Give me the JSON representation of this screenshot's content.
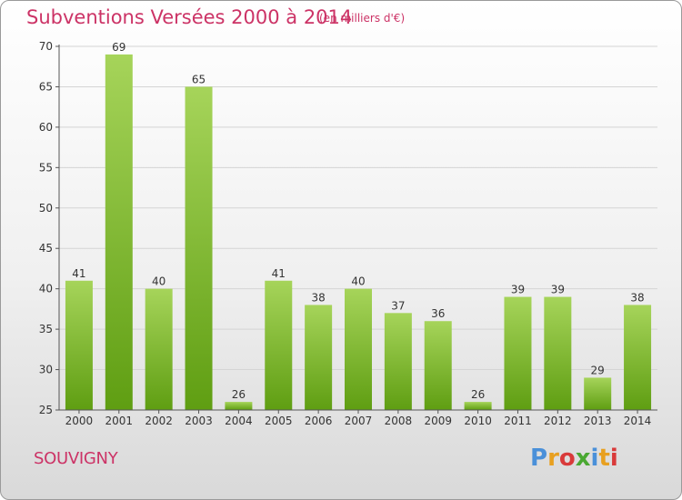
{
  "header": {
    "title": "Subventions Versées 2000 à 2014",
    "unit": "(en milliers d'€)"
  },
  "footer": {
    "commune": "SOUVIGNY",
    "logo_text": "Proxiti",
    "logo_colors": [
      "#4a90d9",
      "#e8a020",
      "#d93a3a",
      "#4aa832",
      "#4a90d9",
      "#e8a020",
      "#d93a3a"
    ]
  },
  "colors": {
    "bar_light": "#a6d45a",
    "bar_dark": "#5f9e12",
    "title": "#cc3366"
  },
  "chart_data": {
    "type": "bar",
    "title": "Subventions Versées 2000 à 2014",
    "xlabel": "",
    "ylabel": "",
    "categories": [
      "2000",
      "2001",
      "2002",
      "2003",
      "2004",
      "2005",
      "2006",
      "2007",
      "2008",
      "2009",
      "2010",
      "2011",
      "2012",
      "2013",
      "2014"
    ],
    "values": [
      41,
      69,
      40,
      65,
      26,
      41,
      38,
      40,
      37,
      36,
      26,
      39,
      39,
      29,
      38
    ],
    "ylim": [
      25,
      70
    ],
    "yticks": [
      25,
      30,
      35,
      40,
      45,
      50,
      55,
      60,
      65,
      70
    ],
    "grid": true
  }
}
